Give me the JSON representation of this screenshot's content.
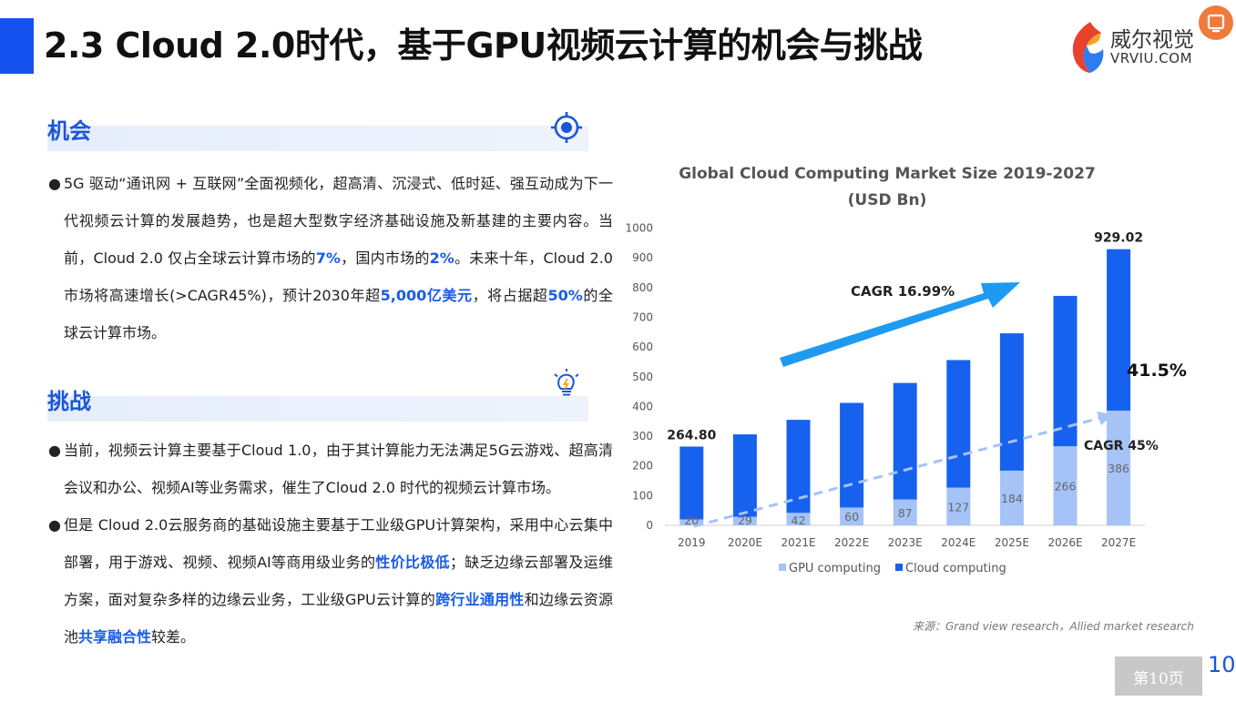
{
  "title": "2.3 Cloud 2.0时代，基于GPU视频云计算的机会与挑战",
  "logo": {
    "cn": "威尔视觉",
    "en": "VRVIU.COM"
  },
  "opportunity": {
    "heading": "机会",
    "icon": "target-icon",
    "parts": [
      {
        "t": "5G 驱动“通讯网 + 互联网”全面视频化，超高清、沉浸式、低时延、强互动成为下一代视频云计算的发展趋势，也是超大型数字经济基础设施及新基建的主要内容。当前，Cloud 2.0 仅占全球云计算市场的",
        "h": false
      },
      {
        "t": "7%",
        "h": true
      },
      {
        "t": "，国内市场的",
        "h": false
      },
      {
        "t": "2%",
        "h": true
      },
      {
        "t": "。未来十年，Cloud 2.0 市场将高速增长(>CAGR45%)，预计2030年超",
        "h": false
      },
      {
        "t": "5,000亿美元",
        "h": true
      },
      {
        "t": "，将占据超",
        "h": false
      },
      {
        "t": "50%",
        "h": true
      },
      {
        "t": "的全球云计算市场。",
        "h": false
      }
    ]
  },
  "challenge": {
    "heading": "挑战",
    "icon": "lightbulb-icon",
    "bullets": [
      {
        "parts": [
          {
            "t": "当前，视频云计算主要基于Cloud 1.0，由于其计算能力无法满足5G云游戏、超高清会议和办公、视频AI等业务需求，催生了Cloud 2.0 时代的视频云计算市场。",
            "h": false
          }
        ]
      },
      {
        "parts": [
          {
            "t": "但是 Cloud 2.0云服务商的基础设施主要基于工业级GPU计算架构，采用中心云集中部署，用于游戏、视频、视频AI等商用级业务的",
            "h": false
          },
          {
            "t": "性价比极低",
            "h": true
          },
          {
            "t": "；缺乏边缘云部署及运维方案，面对复杂多样的边缘云业务，工业级GPU云计算的",
            "h": false
          },
          {
            "t": "跨行业通用性",
            "h": true
          },
          {
            "t": "和边缘云资源池",
            "h": false
          },
          {
            "t": "共享融合性",
            "h": true
          },
          {
            "t": "较差。",
            "h": false
          }
        ]
      }
    ]
  },
  "chart_title_line1": "Global Cloud Computing Market Size 2019-2027",
  "chart_title_line2": "(USD Bn)",
  "chart_data": {
    "type": "bar",
    "stacked": true,
    "categories": [
      "2019",
      "2020E",
      "2021E",
      "2022E",
      "2023E",
      "2024E",
      "2025E",
      "2026E",
      "2027E"
    ],
    "series": [
      {
        "name": "GPU computing",
        "color": "#a6c3f7",
        "values": [
          20,
          29,
          42,
          60,
          87,
          127,
          184,
          266,
          386
        ]
      },
      {
        "name": "Cloud computing",
        "color": "#1662ef",
        "values": [
          245,
          277,
          313,
          352,
          392,
          429,
          462,
          506,
          543
        ]
      }
    ],
    "totals": [
      264.8,
      306,
      355,
      412,
      479,
      556,
      646,
      772,
      929.02
    ],
    "total_labels": [
      {
        "index": 0,
        "text": "264.80"
      },
      {
        "index": 8,
        "text": "929.02"
      }
    ],
    "ylim": [
      0,
      1000
    ],
    "yticks": [
      0,
      100,
      200,
      300,
      400,
      500,
      600,
      700,
      800,
      900,
      1000
    ],
    "legend_position": "bottom",
    "annotations": {
      "cagr_total": "CAGR 16.99%",
      "cagr_gpu": "CAGR 45%",
      "gpu_share": "41.5%"
    }
  },
  "source": "来源：Grand view research，Allied market research",
  "page": {
    "label": "第10页",
    "number": "10"
  }
}
